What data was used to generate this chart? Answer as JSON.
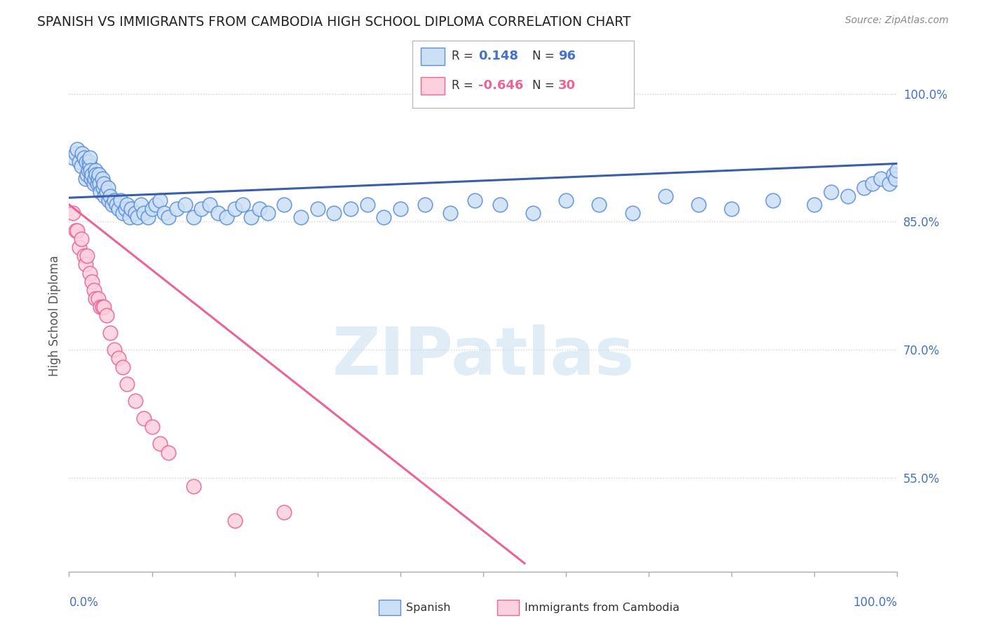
{
  "title": "SPANISH VS IMMIGRANTS FROM CAMBODIA HIGH SCHOOL DIPLOMA CORRELATION CHART",
  "source": "Source: ZipAtlas.com",
  "ylabel": "High School Diploma",
  "xlim": [
    0.0,
    1.0
  ],
  "ylim": [
    0.44,
    1.04
  ],
  "legend_R_spanish": "0.148",
  "legend_N_spanish": "96",
  "legend_R_cambodia": "-0.646",
  "legend_N_cambodia": "30",
  "blue_fill": "#cce0f5",
  "blue_edge": "#5b8dd9",
  "pink_fill": "#fcd0dc",
  "pink_edge": "#e8649a",
  "blue_line": "#3a5fa8",
  "pink_line": "#e8649a",
  "background_color": "#ffffff",
  "grid_color": "#cccccc",
  "title_color": "#222222",
  "source_color": "#888888",
  "axis_label_color": "#4472c4",
  "ylabel_color": "#555555",
  "spanish_x": [
    0.005,
    0.008,
    0.01,
    0.012,
    0.015,
    0.016,
    0.018,
    0.02,
    0.021,
    0.022,
    0.023,
    0.024,
    0.025,
    0.025,
    0.026,
    0.027,
    0.028,
    0.03,
    0.031,
    0.032,
    0.033,
    0.034,
    0.035,
    0.036,
    0.037,
    0.038,
    0.04,
    0.041,
    0.042,
    0.043,
    0.045,
    0.047,
    0.048,
    0.05,
    0.052,
    0.055,
    0.057,
    0.06,
    0.062,
    0.065,
    0.068,
    0.07,
    0.073,
    0.075,
    0.08,
    0.083,
    0.087,
    0.09,
    0.095,
    0.1,
    0.105,
    0.11,
    0.115,
    0.12,
    0.13,
    0.14,
    0.15,
    0.16,
    0.17,
    0.18,
    0.19,
    0.2,
    0.21,
    0.22,
    0.23,
    0.24,
    0.26,
    0.28,
    0.3,
    0.32,
    0.34,
    0.36,
    0.38,
    0.4,
    0.43,
    0.46,
    0.49,
    0.52,
    0.56,
    0.6,
    0.64,
    0.68,
    0.72,
    0.76,
    0.8,
    0.85,
    0.9,
    0.92,
    0.94,
    0.96,
    0.97,
    0.98,
    0.99,
    0.995,
    0.998,
    1.0
  ],
  "spanish_y": [
    0.925,
    0.93,
    0.935,
    0.92,
    0.915,
    0.93,
    0.925,
    0.9,
    0.92,
    0.905,
    0.91,
    0.92,
    0.915,
    0.925,
    0.91,
    0.9,
    0.905,
    0.895,
    0.9,
    0.91,
    0.905,
    0.895,
    0.9,
    0.905,
    0.895,
    0.885,
    0.9,
    0.89,
    0.895,
    0.88,
    0.885,
    0.89,
    0.875,
    0.88,
    0.87,
    0.875,
    0.87,
    0.865,
    0.875,
    0.86,
    0.865,
    0.87,
    0.855,
    0.865,
    0.86,
    0.855,
    0.87,
    0.86,
    0.855,
    0.865,
    0.87,
    0.875,
    0.86,
    0.855,
    0.865,
    0.87,
    0.855,
    0.865,
    0.87,
    0.86,
    0.855,
    0.865,
    0.87,
    0.855,
    0.865,
    0.86,
    0.87,
    0.855,
    0.865,
    0.86,
    0.865,
    0.87,
    0.855,
    0.865,
    0.87,
    0.86,
    0.875,
    0.87,
    0.86,
    0.875,
    0.87,
    0.86,
    0.88,
    0.87,
    0.865,
    0.875,
    0.87,
    0.885,
    0.88,
    0.89,
    0.895,
    0.9,
    0.895,
    0.905,
    0.9,
    0.91
  ],
  "cambodia_x": [
    0.005,
    0.008,
    0.01,
    0.012,
    0.015,
    0.018,
    0.02,
    0.022,
    0.025,
    0.028,
    0.03,
    0.032,
    0.035,
    0.038,
    0.04,
    0.042,
    0.045,
    0.05,
    0.055,
    0.06,
    0.065,
    0.07,
    0.08,
    0.09,
    0.1,
    0.11,
    0.12,
    0.15,
    0.2,
    0.26
  ],
  "cambodia_y": [
    0.86,
    0.84,
    0.84,
    0.82,
    0.83,
    0.81,
    0.8,
    0.81,
    0.79,
    0.78,
    0.77,
    0.76,
    0.76,
    0.75,
    0.75,
    0.75,
    0.74,
    0.72,
    0.7,
    0.69,
    0.68,
    0.66,
    0.64,
    0.62,
    0.61,
    0.59,
    0.58,
    0.54,
    0.5,
    0.51
  ],
  "spanish_trend_x": [
    0.0,
    1.0
  ],
  "spanish_trend_y": [
    0.878,
    0.918
  ],
  "cambodia_trend_x": [
    0.0,
    0.55
  ],
  "cambodia_trend_y": [
    0.87,
    0.45
  ],
  "ytick_positions": [
    0.55,
    0.7,
    0.85,
    1.0
  ],
  "ytick_labels": [
    "55.0%",
    "70.0%",
    "85.0%",
    "100.0%"
  ],
  "watermark_text": "ZIPatlas"
}
